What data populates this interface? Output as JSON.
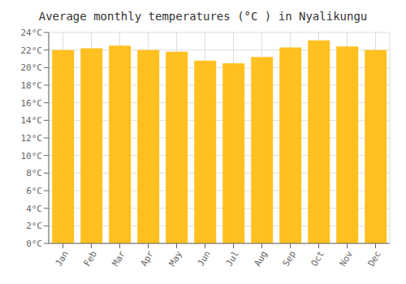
{
  "chart_data": {
    "type": "bar",
    "title": "Average monthly temperatures (°C ) in Nyalikungu",
    "categories": [
      "Jan",
      "Feb",
      "Mar",
      "Apr",
      "May",
      "Jun",
      "Jul",
      "Aug",
      "Sep",
      "Oct",
      "Nov",
      "Dec"
    ],
    "values": [
      22.0,
      22.2,
      22.5,
      22.0,
      21.8,
      20.8,
      20.5,
      21.2,
      22.3,
      23.1,
      22.4,
      22.0
    ],
    "color": "#FFC020",
    "ylim": [
      0,
      24
    ],
    "yticks": [
      {
        "value": 0,
        "label": "0°C"
      },
      {
        "value": 2,
        "label": "2°C"
      },
      {
        "value": 4,
        "label": "4°C"
      },
      {
        "value": 6,
        "label": "6°C"
      },
      {
        "value": 8,
        "label": "8°C"
      },
      {
        "value": 10,
        "label": "10°C"
      },
      {
        "value": 12,
        "label": "12°C"
      },
      {
        "value": 14,
        "label": "14°C"
      },
      {
        "value": 16,
        "label": "16°C"
      },
      {
        "value": 18,
        "label": "18°C"
      },
      {
        "value": 20,
        "label": "20°C"
      },
      {
        "value": 22,
        "label": "22°C"
      },
      {
        "value": 24,
        "label": "24°C"
      }
    ],
    "grid": true
  }
}
